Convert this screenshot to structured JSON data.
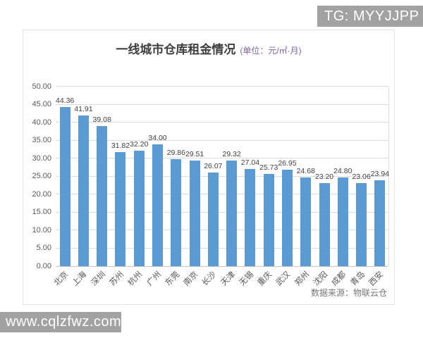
{
  "watermarks": {
    "top": "TG: MYYJJPP",
    "bottom": "www.cqlzfwz.com"
  },
  "chart_data": {
    "type": "bar",
    "title": "一线城市仓库租金情况",
    "unit_label": "(单位：元/㎡·月)",
    "categories": [
      "北京",
      "上海",
      "深圳",
      "苏州",
      "杭州",
      "广州",
      "东莞",
      "南京",
      "长沙",
      "天津",
      "无锡",
      "重庆",
      "武汉",
      "郑州",
      "沈阳",
      "成都",
      "青岛",
      "西安"
    ],
    "values": [
      44.36,
      41.91,
      39.08,
      31.82,
      32.2,
      34.0,
      29.86,
      29.51,
      26.07,
      29.32,
      27.04,
      25.73,
      26.95,
      24.68,
      23.2,
      24.8,
      23.06,
      23.94
    ],
    "ylim": [
      0,
      50
    ],
    "yticks": [
      "0.00",
      "5.00",
      "10.00",
      "15.00",
      "20.00",
      "25.00",
      "30.00",
      "35.00",
      "40.00",
      "45.00",
      "50.00"
    ],
    "grid": true,
    "legend": "none",
    "bar_color": "#5B9BD5",
    "source": "数据来源：物联云仓"
  }
}
